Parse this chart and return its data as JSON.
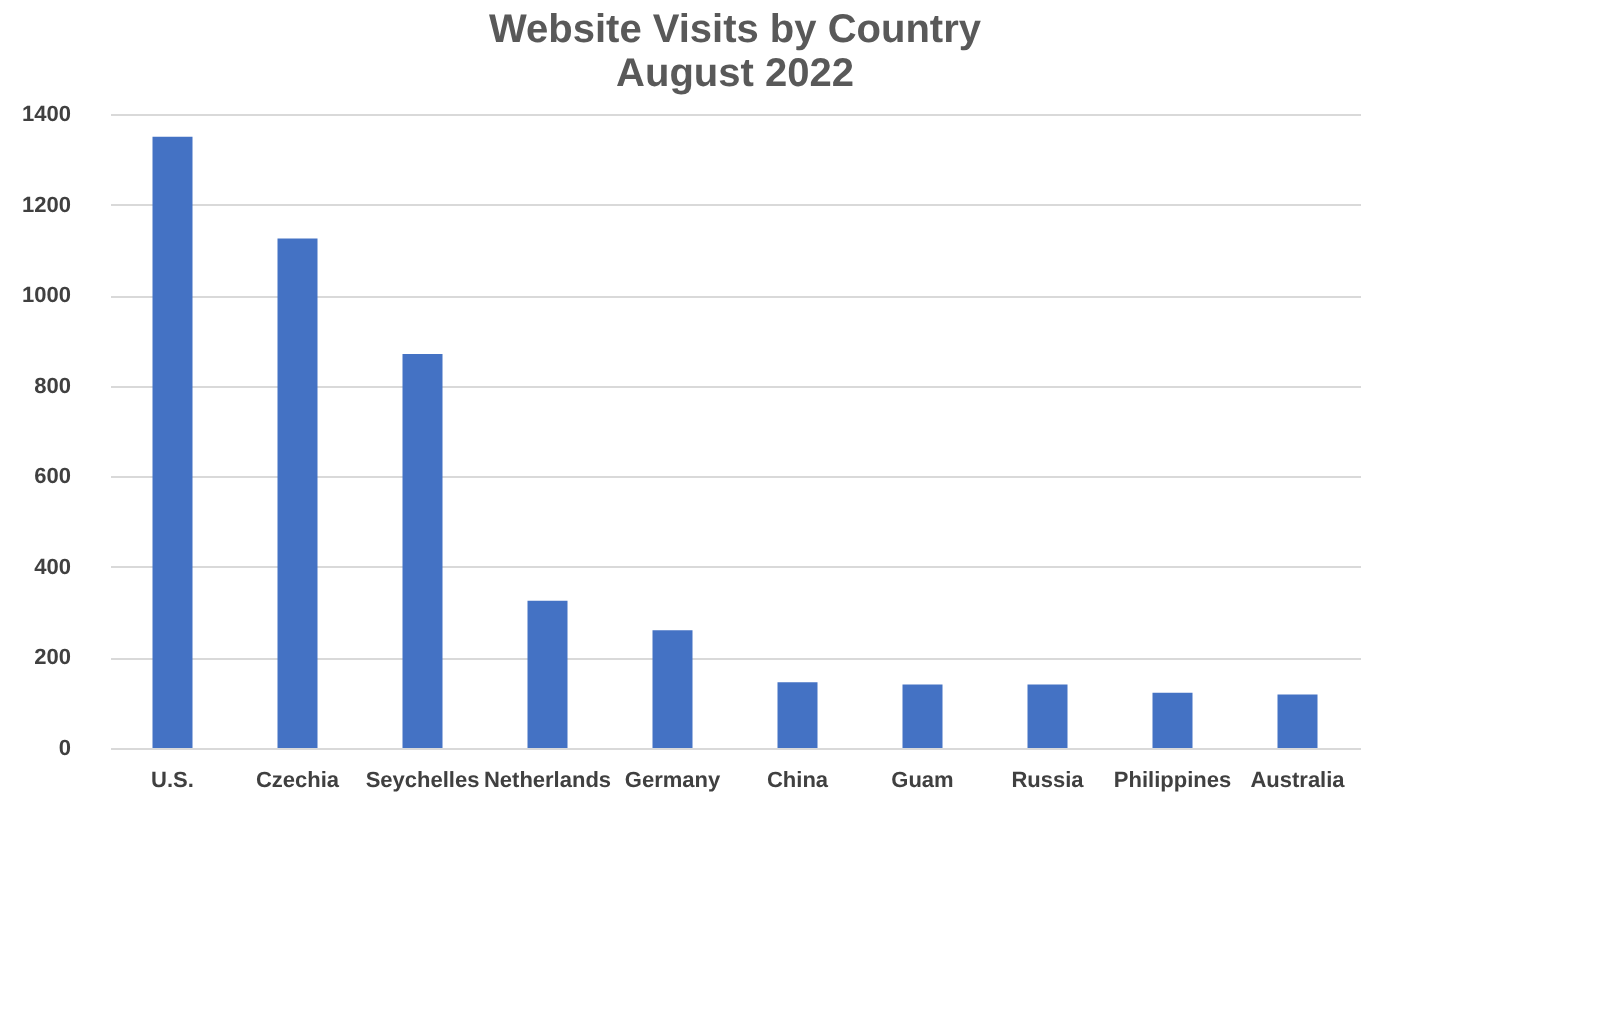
{
  "chart_data": {
    "type": "bar",
    "title": "Website Visits by Country",
    "subtitle": "August 2022",
    "categories": [
      "U.S.",
      "Czechia",
      "Seychelles",
      "Netherlands",
      "Germany",
      "China",
      "Guam",
      "Russia",
      "Philippines",
      "Australia"
    ],
    "values": [
      1350,
      1125,
      870,
      325,
      260,
      145,
      140,
      140,
      122,
      118
    ],
    "color": "#4472c4",
    "ylim": [
      0,
      1400
    ],
    "yticks": [
      0,
      200,
      400,
      600,
      800,
      1000,
      1200,
      1400
    ],
    "grid": "y"
  }
}
